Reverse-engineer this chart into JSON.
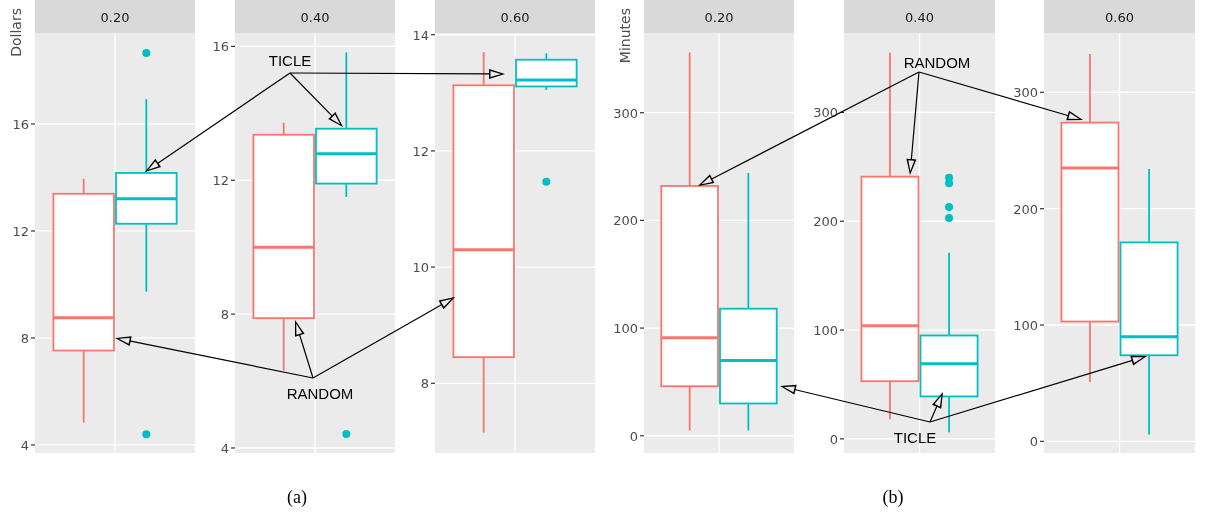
{
  "chart_data": [
    {
      "type": "box",
      "title": "0.20",
      "ylabel": "Dollars",
      "categories": [
        null
      ],
      "ylim": [
        3.7,
        19.4
      ],
      "yticks": [
        4,
        8,
        12,
        16
      ],
      "grid": true,
      "series": [
        {
          "color": "#f8766d",
          "boxes": [
            {
              "low": 4.84,
              "q1": 7.53,
              "median": 8.76,
              "q3": 13.39,
              "high": 13.95
            }
          ]
        },
        {
          "color": "#00bfc4",
          "boxes": [
            {
              "low": 9.73,
              "q1": 12.27,
              "median": 13.2,
              "q3": 14.17,
              "high": 16.93,
              "outliers": [
                18.65,
                4.4
              ]
            }
          ]
        }
      ]
    },
    {
      "type": "box",
      "title": "0.40",
      "categories": [
        null
      ],
      "ylim": [
        3.85,
        16.4
      ],
      "yticks": [
        4,
        8,
        12,
        16
      ],
      "grid": true,
      "annotations": [
        "TICLE",
        "RANDOM",
        "(a)"
      ],
      "series": [
        {
          "color": "#f8766d",
          "boxes": [
            {
              "low": 6.32,
              "q1": 7.88,
              "median": 10.0,
              "q3": 13.36,
              "high": 13.72
            }
          ]
        },
        {
          "color": "#00bfc4",
          "boxes": [
            {
              "low": 11.5,
              "q1": 11.9,
              "median": 12.79,
              "q3": 13.54,
              "high": 15.82,
              "outliers": [
                4.42
              ]
            }
          ]
        }
      ]
    },
    {
      "type": "box",
      "title": "0.60",
      "categories": [
        null
      ],
      "ylim": [
        6.8,
        14.03
      ],
      "yticks": [
        8,
        10,
        12,
        14
      ],
      "grid": true,
      "series": [
        {
          "color": "#f8766d",
          "boxes": [
            {
              "low": 7.15,
              "q1": 8.45,
              "median": 10.3,
              "q3": 13.13,
              "high": 13.7
            }
          ]
        },
        {
          "color": "#00bfc4",
          "boxes": [
            {
              "low": 13.05,
              "q1": 13.11,
              "median": 13.22,
              "q3": 13.57,
              "high": 13.68,
              "outliers": [
                11.47
              ]
            }
          ]
        }
      ]
    },
    {
      "type": "box",
      "title": "0.20",
      "ylabel": "Minutes",
      "categories": [
        null
      ],
      "ylim": [
        -16,
        374
      ],
      "yticks": [
        0,
        100,
        200,
        300
      ],
      "grid": true,
      "series": [
        {
          "color": "#f8766d",
          "boxes": [
            {
              "low": 5,
              "q1": 46,
              "median": 91,
              "q3": 232,
              "high": 356
            }
          ]
        },
        {
          "color": "#00bfc4",
          "boxes": [
            {
              "low": 5,
              "q1": 30,
              "median": 70,
              "q3": 118,
              "high": 244
            }
          ]
        }
      ]
    },
    {
      "type": "box",
      "title": "0.40",
      "categories": [
        null
      ],
      "ylim": [
        -13,
        373
      ],
      "yticks": [
        0,
        100,
        200,
        300
      ],
      "grid": true,
      "annotations": [
        "RANDOM",
        "TICLE",
        "(b)"
      ],
      "series": [
        {
          "color": "#f8766d",
          "boxes": [
            {
              "low": 18,
              "q1": 53,
              "median": 104,
              "q3": 241,
              "high": 355
            }
          ]
        },
        {
          "color": "#00bfc4",
          "boxes": [
            {
              "low": 6,
              "q1": 39,
              "median": 69,
              "q3": 95,
              "high": 171,
              "outliers": [
                240,
                235,
                213,
                203
              ]
            }
          ]
        }
      ]
    },
    {
      "type": "box",
      "title": "0.60",
      "categories": [
        null
      ],
      "ylim": [
        -10,
        351
      ],
      "yticks": [
        0,
        100,
        200,
        300
      ],
      "grid": true,
      "series": [
        {
          "color": "#f8766d",
          "boxes": [
            {
              "low": 51,
              "q1": 103,
              "median": 235,
              "q3": 274,
              "high": 333
            }
          ]
        },
        {
          "color": "#00bfc4",
          "boxes": [
            {
              "low": 6,
              "q1": 74,
              "median": 90,
              "q3": 171,
              "high": 234
            }
          ]
        }
      ]
    }
  ]
}
